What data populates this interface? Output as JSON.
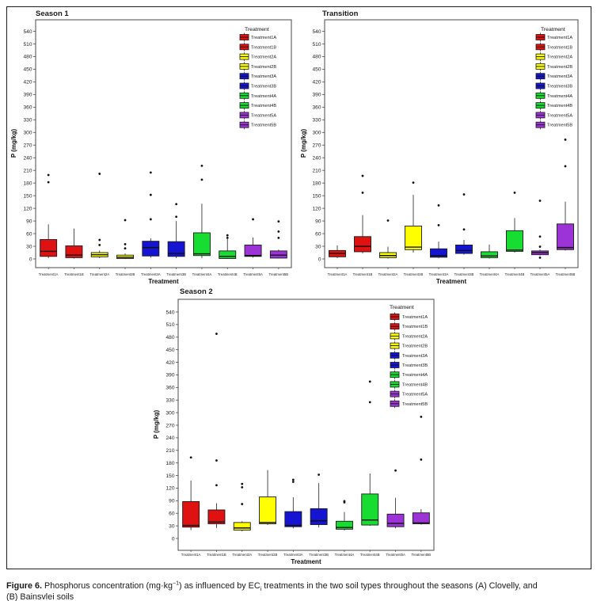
{
  "caption": {
    "label": "Figure 6.",
    "part1": " Phosphorus concentration (mg·kg",
    "sup": "−1",
    "part2": ") as influenced by EC",
    "sub": "i",
    "part3": " treatments in the two soil types throughout the seasons (A) Clovelly, and",
    "line2": "(B) Bainsvlei soils"
  },
  "colors": {
    "red": "#df1111",
    "yellow": "#ffff00",
    "blue": "#1414d2",
    "green": "#17dd33",
    "purple": "#9c33d6"
  },
  "chart_data": [
    {
      "type": "boxplot",
      "title": "Season 1",
      "xlabel": "Treatment",
      "ylabel": "P (mg/kg)",
      "ylim": [
        -10,
        565
      ],
      "yticks": [
        0,
        30,
        60,
        90,
        120,
        150,
        180,
        210,
        240,
        270,
        300,
        330,
        360,
        390,
        420,
        450,
        480,
        510,
        540
      ],
      "legend_title": "Treatment",
      "legend_position": "top-right",
      "grid": false,
      "series": [
        {
          "name": "Treatment1A",
          "color": "#df1111",
          "low": 2,
          "q1": 6,
          "median": 18,
          "q3": 46,
          "high": 82,
          "outliers": [
            182,
            199
          ]
        },
        {
          "name": "Treatment1B",
          "color": "#df1111",
          "low": 1,
          "q1": 3,
          "median": 9,
          "q3": 31,
          "high": 72,
          "outliers": []
        },
        {
          "name": "Treatment2A",
          "color": "#ffff00",
          "low": 2,
          "q1": 5,
          "median": 10,
          "q3": 15,
          "high": 20,
          "outliers": [
            33,
            45,
            202
          ]
        },
        {
          "name": "Treatment2B",
          "color": "#ffff00",
          "low": 0,
          "q1": 1,
          "median": 4,
          "q3": 9,
          "high": 13,
          "outliers": [
            25,
            35,
            92
          ]
        },
        {
          "name": "Treatment3A",
          "color": "#1414d2",
          "low": 3,
          "q1": 7,
          "median": 27,
          "q3": 42,
          "high": 49,
          "outliers": [
            94,
            152,
            205
          ]
        },
        {
          "name": "Treatment3B",
          "color": "#1414d2",
          "low": 2,
          "q1": 6,
          "median": 13,
          "q3": 41,
          "high": 90,
          "outliers": [
            100,
            130
          ]
        },
        {
          "name": "Treatment4A",
          "color": "#17dd33",
          "low": 2,
          "q1": 8,
          "median": 12,
          "q3": 62,
          "high": 131,
          "outliers": [
            188,
            221
          ]
        },
        {
          "name": "Treatment4B",
          "color": "#17dd33",
          "low": 0,
          "q1": 1,
          "median": 6,
          "q3": 19,
          "high": 47,
          "outliers": [
            50,
            56
          ]
        },
        {
          "name": "Treatment5A",
          "color": "#9c33d6",
          "low": 3,
          "q1": 6,
          "median": 8,
          "q3": 33,
          "high": 51,
          "outliers": [
            94
          ]
        },
        {
          "name": "Treatment5B",
          "color": "#9c33d6",
          "low": 1,
          "q1": 2,
          "median": 9,
          "q3": 19,
          "high": 22,
          "outliers": [
            50,
            65,
            89
          ]
        }
      ]
    },
    {
      "type": "boxplot",
      "title": "Transition",
      "xlabel": "Treatment",
      "ylabel": "P (mg/kg)",
      "ylim": [
        -10,
        565
      ],
      "yticks": [
        0,
        30,
        60,
        90,
        120,
        150,
        180,
        210,
        240,
        270,
        300,
        330,
        360,
        390,
        420,
        450,
        480,
        510,
        540
      ],
      "legend_title": "Treatment",
      "legend_position": "top-right",
      "grid": false,
      "series": [
        {
          "name": "Treatment1A",
          "color": "#df1111",
          "low": 2,
          "q1": 5,
          "median": 13,
          "q3": 20,
          "high": 32,
          "outliers": []
        },
        {
          "name": "Treatment1B",
          "color": "#df1111",
          "low": 13,
          "q1": 17,
          "median": 30,
          "q3": 53,
          "high": 104,
          "outliers": [
            157,
            197
          ]
        },
        {
          "name": "Treatment2A",
          "color": "#ffff00",
          "low": 1,
          "q1": 3,
          "median": 8,
          "q3": 15,
          "high": 29,
          "outliers": [
            91
          ]
        },
        {
          "name": "Treatment2B",
          "color": "#ffff00",
          "low": 15,
          "q1": 22,
          "median": 28,
          "q3": 78,
          "high": 152,
          "outliers": [
            181
          ]
        },
        {
          "name": "Treatment3A",
          "color": "#1414d2",
          "low": 2,
          "q1": 4,
          "median": 8,
          "q3": 24,
          "high": 41,
          "outliers": [
            80,
            127
          ]
        },
        {
          "name": "Treatment3B",
          "color": "#1414d2",
          "low": 10,
          "q1": 13,
          "median": 20,
          "q3": 33,
          "high": 45,
          "outliers": [
            70,
            153
          ]
        },
        {
          "name": "Treatment4A",
          "color": "#17dd33",
          "low": 1,
          "q1": 3,
          "median": 7,
          "q3": 17,
          "high": 34,
          "outliers": []
        },
        {
          "name": "Treatment4B",
          "color": "#17dd33",
          "low": 15,
          "q1": 18,
          "median": 21,
          "q3": 67,
          "high": 97,
          "outliers": [
            157
          ]
        },
        {
          "name": "Treatment5A",
          "color": "#9c33d6",
          "low": 8,
          "q1": 10,
          "median": 15,
          "q3": 19,
          "high": 22,
          "outliers": [
            3,
            29,
            53,
            138
          ]
        },
        {
          "name": "Treatment5B",
          "color": "#9c33d6",
          "low": 20,
          "q1": 22,
          "median": 27,
          "q3": 83,
          "high": 136,
          "outliers": [
            220,
            283
          ]
        }
      ]
    },
    {
      "type": "boxplot",
      "title": "Season 2",
      "xlabel": "Treatment",
      "ylabel": "P (mg/kg)",
      "ylim": [
        -10,
        565
      ],
      "yticks": [
        0,
        30,
        60,
        90,
        120,
        150,
        180,
        210,
        240,
        270,
        300,
        330,
        360,
        390,
        420,
        450,
        480,
        510,
        540
      ],
      "legend_title": "Treatment",
      "legend_position": "top-right",
      "grid": false,
      "series": [
        {
          "name": "Treatment1A",
          "color": "#df1111",
          "low": 20,
          "q1": 27,
          "median": 31,
          "q3": 88,
          "high": 138,
          "outliers": [
            193
          ]
        },
        {
          "name": "Treatment1B",
          "color": "#df1111",
          "low": 25,
          "q1": 35,
          "median": 39,
          "q3": 68,
          "high": 84,
          "outliers": [
            127,
            186,
            488
          ]
        },
        {
          "name": "Treatment2A",
          "color": "#ffff00",
          "low": 17,
          "q1": 20,
          "median": 25,
          "q3": 38,
          "high": 41,
          "outliers": [
            82,
            122,
            130
          ]
        },
        {
          "name": "Treatment2B",
          "color": "#ffff00",
          "low": 32,
          "q1": 35,
          "median": 38,
          "q3": 99,
          "high": 163,
          "outliers": []
        },
        {
          "name": "Treatment3A",
          "color": "#1414d2",
          "low": 24,
          "q1": 28,
          "median": 31,
          "q3": 64,
          "high": 98,
          "outliers": [
            135,
            140
          ]
        },
        {
          "name": "Treatment3B",
          "color": "#1414d2",
          "low": 26,
          "q1": 33,
          "median": 42,
          "q3": 71,
          "high": 132,
          "outliers": [
            152
          ]
        },
        {
          "name": "Treatment4A",
          "color": "#17dd33",
          "low": 19,
          "q1": 22,
          "median": 26,
          "q3": 41,
          "high": 63,
          "outliers": [
            86,
            89
          ]
        },
        {
          "name": "Treatment4B",
          "color": "#17dd33",
          "low": 30,
          "q1": 32,
          "median": 44,
          "q3": 106,
          "high": 155,
          "outliers": [
            325,
            374
          ]
        },
        {
          "name": "Treatment5A",
          "color": "#9c33d6",
          "low": 24,
          "q1": 28,
          "median": 36,
          "q3": 58,
          "high": 97,
          "outliers": [
            162
          ]
        },
        {
          "name": "Treatment5B",
          "color": "#9c33d6",
          "low": 33,
          "q1": 35,
          "median": 37,
          "q3": 61,
          "high": 70,
          "outliers": [
            188,
            290
          ]
        }
      ]
    }
  ]
}
